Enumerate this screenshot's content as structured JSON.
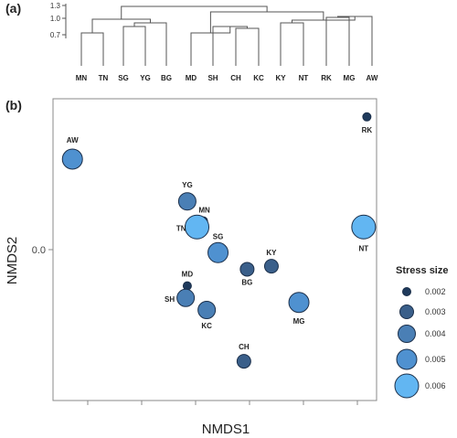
{
  "panels": {
    "a": "(a)",
    "b": "(b)"
  },
  "chart_data": [
    {
      "type": "dendrogram",
      "panel": "(a)",
      "yticks": [
        "1.3",
        "1.0",
        "0.7"
      ],
      "leaves": [
        "MN",
        "TN",
        "SG",
        "YG",
        "BG",
        "MD",
        "SH",
        "CH",
        "KC",
        "KY",
        "NT",
        "RK",
        "MG",
        "AW"
      ],
      "colors": {
        "line": "#555555"
      }
    },
    {
      "type": "scatter",
      "panel": "(b)",
      "xlabel": "NMDS1",
      "ylabel": "NMDS2",
      "yticks": [
        {
          "label": "0.0",
          "value": 0.0
        }
      ],
      "xlim": [
        -1.0,
        1.0
      ],
      "ylim": [
        -1.0,
        1.0
      ],
      "points": [
        {
          "label": "RK",
          "x": 0.94,
          "y": 0.88,
          "size": 0.002
        },
        {
          "label": "AW",
          "x": -0.88,
          "y": 0.6,
          "size": 0.005
        },
        {
          "label": "YG",
          "x": -0.17,
          "y": 0.32,
          "size": 0.004
        },
        {
          "label": "MN",
          "x": -0.07,
          "y": 0.19,
          "size": 0.002
        },
        {
          "label": "TN",
          "x": -0.11,
          "y": 0.15,
          "size": 0.006
        },
        {
          "label": "NT",
          "x": 0.92,
          "y": 0.15,
          "size": 0.006
        },
        {
          "label": "SG",
          "x": 0.02,
          "y": -0.02,
          "size": 0.005
        },
        {
          "label": "KY",
          "x": 0.35,
          "y": -0.11,
          "size": 0.003
        },
        {
          "label": "BG",
          "x": 0.2,
          "y": -0.13,
          "size": 0.003
        },
        {
          "label": "MD",
          "x": -0.17,
          "y": -0.24,
          "size": 0.002
        },
        {
          "label": "SH",
          "x": -0.18,
          "y": -0.32,
          "size": 0.004
        },
        {
          "label": "KC",
          "x": -0.05,
          "y": -0.4,
          "size": 0.004
        },
        {
          "label": "MG",
          "x": 0.52,
          "y": -0.35,
          "size": 0.005
        },
        {
          "label": "CH",
          "x": 0.18,
          "y": -0.74,
          "size": 0.003
        }
      ],
      "legend": {
        "title": "Stress size",
        "items": [
          {
            "label": "0.002",
            "size": 0.002
          },
          {
            "label": "0.003",
            "size": 0.003
          },
          {
            "label": "0.004",
            "size": 0.004
          },
          {
            "label": "0.005",
            "size": 0.005
          },
          {
            "label": "0.006",
            "size": 0.006
          }
        ],
        "position": "right"
      },
      "colors": {
        "0.002": "#1f3a5c",
        "0.003": "#3a5f8a",
        "0.004": "#4a7fb5",
        "0.005": "#4f91d0",
        "0.006": "#62b6f2",
        "stroke": "#1b2f4a",
        "frame": "#888888"
      }
    }
  ]
}
